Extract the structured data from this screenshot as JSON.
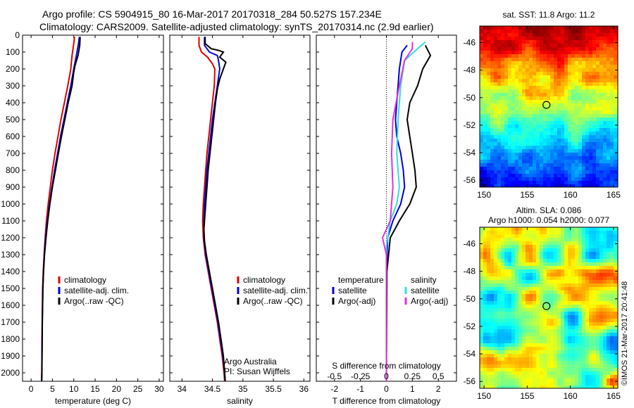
{
  "header": {
    "title_line1": "Argo profile: CS 5904915_80 16-Mar-2017 20170318_284 50.527S 157.234E",
    "title_line2": "Climatology: CARS2009. Satellite-adjusted climatology: synTS_20170314.nc (2.9d earlier)"
  },
  "credits": {
    "org": "Argo Australia",
    "pi": "PI: Susan Wijffels",
    "copyright": "©IMOS 21-Mar-2017 20:41:48"
  },
  "colors": {
    "climatology": "#dd0000",
    "satellite": "#0000dd",
    "argo": "#000000",
    "salinity_satellite": "#33dddd",
    "salinity_argo": "#dd33dd"
  },
  "chart_data": [
    {
      "type": "line",
      "name": "temperature",
      "xlabel": "temperature (deg C)",
      "ylabel": "",
      "xlim": [
        -2,
        31
      ],
      "ylim": [
        2050,
        0
      ],
      "x_ticks": [
        0,
        5,
        10,
        15,
        20,
        25,
        30
      ],
      "y_ticks": [
        0,
        100,
        200,
        300,
        400,
        500,
        600,
        700,
        800,
        900,
        1000,
        1100,
        1200,
        1300,
        1400,
        1500,
        1600,
        1700,
        1800,
        1900,
        2000
      ],
      "legend": [
        "climatology",
        "satellite-adj. clim.",
        "Argo(..raw -QC)"
      ],
      "series": [
        {
          "name": "climatology",
          "color": "#dd0000",
          "points": [
            [
              10.2,
              10
            ],
            [
              10.0,
              50
            ],
            [
              9.6,
              120
            ],
            [
              9.3,
              200
            ],
            [
              8.6,
              300
            ],
            [
              7.8,
              400
            ],
            [
              7.0,
              500
            ],
            [
              6.3,
              600
            ],
            [
              5.6,
              700
            ],
            [
              5.0,
              800
            ],
            [
              4.5,
              900
            ],
            [
              4.0,
              1000
            ],
            [
              3.6,
              1100
            ],
            [
              3.3,
              1200
            ],
            [
              3.05,
              1300
            ],
            [
              2.85,
              1400
            ],
            [
              2.7,
              1500
            ],
            [
              2.6,
              1700
            ],
            [
              2.5,
              2000
            ],
            [
              2.45,
              2050
            ]
          ]
        },
        {
          "name": "satellite-adj. clim.",
          "color": "#0000dd",
          "points": [
            [
              11.3,
              10
            ],
            [
              11.1,
              50
            ],
            [
              10.6,
              120
            ],
            [
              10.0,
              200
            ],
            [
              9.3,
              300
            ],
            [
              8.5,
              400
            ],
            [
              7.7,
              500
            ],
            [
              6.9,
              600
            ],
            [
              6.2,
              700
            ],
            [
              5.5,
              800
            ],
            [
              4.9,
              900
            ],
            [
              4.3,
              1000
            ],
            [
              3.8,
              1100
            ],
            [
              3.4,
              1200
            ],
            [
              3.1,
              1300
            ],
            [
              2.9,
              1400
            ],
            [
              2.75,
              1500
            ],
            [
              2.62,
              1700
            ],
            [
              2.52,
              2000
            ],
            [
              2.47,
              2050
            ]
          ]
        },
        {
          "name": "Argo(..raw -QC)",
          "color": "#000000",
          "points": [
            [
              11.5,
              10
            ],
            [
              11.4,
              60
            ],
            [
              11.0,
              120
            ],
            [
              10.3,
              180
            ],
            [
              10.0,
              220
            ],
            [
              9.6,
              300
            ],
            [
              8.7,
              400
            ],
            [
              7.9,
              500
            ],
            [
              7.1,
              600
            ],
            [
              6.4,
              700
            ],
            [
              5.7,
              800
            ],
            [
              5.0,
              900
            ],
            [
              4.4,
              1000
            ],
            [
              3.9,
              1100
            ],
            [
              3.5,
              1200
            ],
            [
              3.15,
              1300
            ],
            [
              2.92,
              1400
            ],
            [
              2.77,
              1500
            ],
            [
              2.63,
              1700
            ],
            [
              2.53,
              2000
            ],
            [
              2.48,
              2050
            ]
          ]
        }
      ]
    },
    {
      "type": "line",
      "name": "salinity",
      "xlabel": "salinity",
      "ylabel": "",
      "xlim": [
        33.8,
        36.1
      ],
      "ylim": [
        2050,
        0
      ],
      "x_ticks": [
        34,
        34.5,
        35,
        35.5,
        36
      ],
      "x_tick_labels": [
        "34",
        "34.5",
        "35",
        "35.5",
        "36"
      ],
      "legend": [
        "climatology",
        "satellite-adj. clim.",
        "Argo(..raw -QC)"
      ],
      "series": [
        {
          "name": "climatology",
          "color": "#dd0000",
          "points": [
            [
              34.28,
              10
            ],
            [
              34.28,
              60
            ],
            [
              34.32,
              100
            ],
            [
              34.42,
              130
            ],
            [
              34.5,
              170
            ],
            [
              34.54,
              200
            ],
            [
              34.53,
              300
            ],
            [
              34.5,
              400
            ],
            [
              34.47,
              500
            ],
            [
              34.44,
              600
            ],
            [
              34.41,
              700
            ],
            [
              34.39,
              800
            ],
            [
              34.37,
              900
            ],
            [
              34.35,
              1000
            ],
            [
              34.34,
              1100
            ],
            [
              34.35,
              1200
            ],
            [
              34.38,
              1300
            ],
            [
              34.43,
              1400
            ],
            [
              34.48,
              1500
            ],
            [
              34.53,
              1600
            ],
            [
              34.58,
              1700
            ],
            [
              34.62,
              1800
            ],
            [
              34.66,
              1900
            ],
            [
              34.69,
              2000
            ],
            [
              34.7,
              2050
            ]
          ]
        },
        {
          "name": "satellite-adj. clim.",
          "color": "#0000dd",
          "points": [
            [
              34.37,
              10
            ],
            [
              34.37,
              60
            ],
            [
              34.45,
              100
            ],
            [
              34.58,
              120
            ],
            [
              34.6,
              150
            ],
            [
              34.62,
              200
            ],
            [
              34.58,
              300
            ],
            [
              34.54,
              400
            ],
            [
              34.5,
              500
            ],
            [
              34.47,
              600
            ],
            [
              34.44,
              700
            ],
            [
              34.41,
              800
            ],
            [
              34.39,
              900
            ],
            [
              34.37,
              1000
            ],
            [
              34.36,
              1100
            ],
            [
              34.36,
              1200
            ],
            [
              34.39,
              1300
            ],
            [
              34.44,
              1400
            ],
            [
              34.49,
              1500
            ],
            [
              34.54,
              1600
            ],
            [
              34.59,
              1700
            ],
            [
              34.63,
              1800
            ],
            [
              34.67,
              1900
            ],
            [
              34.7,
              2000
            ],
            [
              34.71,
              2050
            ]
          ]
        },
        {
          "name": "Argo(..raw -QC)",
          "color": "#000000",
          "points": [
            [
              34.38,
              10
            ],
            [
              34.38,
              50
            ],
            [
              34.48,
              80
            ],
            [
              34.6,
              90
            ],
            [
              34.68,
              100
            ],
            [
              34.62,
              130
            ],
            [
              34.72,
              160
            ],
            [
              34.68,
              200
            ],
            [
              34.62,
              260
            ],
            [
              34.58,
              320
            ],
            [
              34.55,
              400
            ],
            [
              34.52,
              500
            ],
            [
              34.49,
              600
            ],
            [
              34.46,
              700
            ],
            [
              34.43,
              800
            ],
            [
              34.41,
              900
            ],
            [
              34.39,
              1000
            ],
            [
              34.37,
              1100
            ],
            [
              34.36,
              1150
            ],
            [
              34.37,
              1220
            ],
            [
              34.4,
              1300
            ],
            [
              34.45,
              1400
            ],
            [
              34.5,
              1500
            ],
            [
              34.55,
              1600
            ],
            [
              34.6,
              1700
            ],
            [
              34.64,
              1800
            ],
            [
              34.68,
              1900
            ],
            [
              34.7,
              2000
            ],
            [
              34.71,
              2050
            ]
          ]
        }
      ]
    },
    {
      "type": "line",
      "name": "difference",
      "xlabel": "T difference from climatology",
      "xlabel_top": "S difference from climatology",
      "ylabel": "",
      "xlim": [
        -2.7,
        2.7
      ],
      "ylim": [
        2050,
        0
      ],
      "x_ticks": [
        -2,
        -1,
        0,
        1,
        2
      ],
      "x_tick_labels": [
        "-2",
        "-1",
        "0",
        "1",
        "2"
      ],
      "s_ticks": [
        -2,
        -1,
        0,
        1,
        2
      ],
      "s_tick_labels": [
        "-0.5",
        "-0.25",
        "0",
        "0.25",
        "0.5"
      ],
      "legend_temperature_header": "temperature",
      "legend_salinity_header": "salinity",
      "legend": [
        "satellite",
        "Argo(-adj)",
        "satellite",
        "Argo(-adj)"
      ],
      "series": [
        {
          "name": "T satellite",
          "color": "#0000dd",
          "points": [
            [
              0.8,
              60
            ],
            [
              0.6,
              100
            ],
            [
              0.5,
              200
            ],
            [
              0.45,
              300
            ],
            [
              0.4,
              400
            ],
            [
              0.35,
              500
            ],
            [
              0.4,
              600
            ],
            [
              0.55,
              700
            ],
            [
              0.65,
              800
            ],
            [
              0.7,
              900
            ],
            [
              0.55,
              1000
            ],
            [
              0.25,
              1100
            ],
            [
              0.05,
              1200
            ],
            [
              0,
              1400
            ],
            [
              0,
              2050
            ]
          ]
        },
        {
          "name": "T Argo(-adj)",
          "color": "#000000",
          "points": [
            [
              1.5,
              60
            ],
            [
              1.7,
              120
            ],
            [
              1.4,
              200
            ],
            [
              1.2,
              300
            ],
            [
              0.9,
              400
            ],
            [
              0.8,
              500
            ],
            [
              0.9,
              600
            ],
            [
              1.0,
              700
            ],
            [
              1.1,
              800
            ],
            [
              1.15,
              900
            ],
            [
              0.9,
              1000
            ],
            [
              0.5,
              1100
            ],
            [
              0.15,
              1200
            ],
            [
              0.02,
              1400
            ],
            [
              0,
              2050
            ]
          ]
        },
        {
          "name": "S satellite",
          "color": "#33dddd",
          "points": [
            [
              1.5,
              40
            ],
            [
              1.2,
              80
            ],
            [
              0.7,
              150
            ],
            [
              0.55,
              300
            ],
            [
              0.45,
              500
            ],
            [
              0.4,
              700
            ],
            [
              0.5,
              900
            ],
            [
              0.4,
              1000
            ],
            [
              0.15,
              1100
            ],
            [
              0,
              1250
            ],
            [
              0,
              2050
            ]
          ]
        },
        {
          "name": "S Argo(-adj)",
          "color": "#dd33dd",
          "points": [
            [
              1.0,
              40
            ],
            [
              1.0,
              80
            ],
            [
              0.7,
              150
            ],
            [
              0.5,
              300
            ],
            [
              0.25,
              500
            ],
            [
              0.2,
              700
            ],
            [
              0.25,
              900
            ],
            [
              0.15,
              1100
            ],
            [
              -0.15,
              1200
            ],
            [
              0,
              1300
            ],
            [
              0,
              2050
            ]
          ]
        }
      ]
    },
    {
      "type": "heatmap",
      "name": "sst-map",
      "title": "sat. SST: 11.8  Argo: 11.2",
      "xlim": [
        149.5,
        165.5
      ],
      "ylim": [
        -56.5,
        -44.8
      ],
      "x_ticks": [
        150,
        155,
        160,
        165
      ],
      "y_ticks": [
        -46,
        -48,
        -50,
        -52,
        -54,
        -56
      ],
      "marker": {
        "lon": 157.234,
        "lat": -50.527
      }
    },
    {
      "type": "heatmap",
      "name": "sla-map",
      "title_line1": "Altim. SLA: 0.086",
      "title_line2": "Argo h1000: 0.054 h2000: 0.077",
      "xlim": [
        149.5,
        165.5
      ],
      "ylim": [
        -56.5,
        -44.8
      ],
      "x_ticks": [
        150,
        155,
        160,
        165
      ],
      "y_ticks": [
        -46,
        -48,
        -50,
        -52,
        -54,
        -56
      ],
      "marker": {
        "lon": 157.234,
        "lat": -50.527
      }
    }
  ]
}
